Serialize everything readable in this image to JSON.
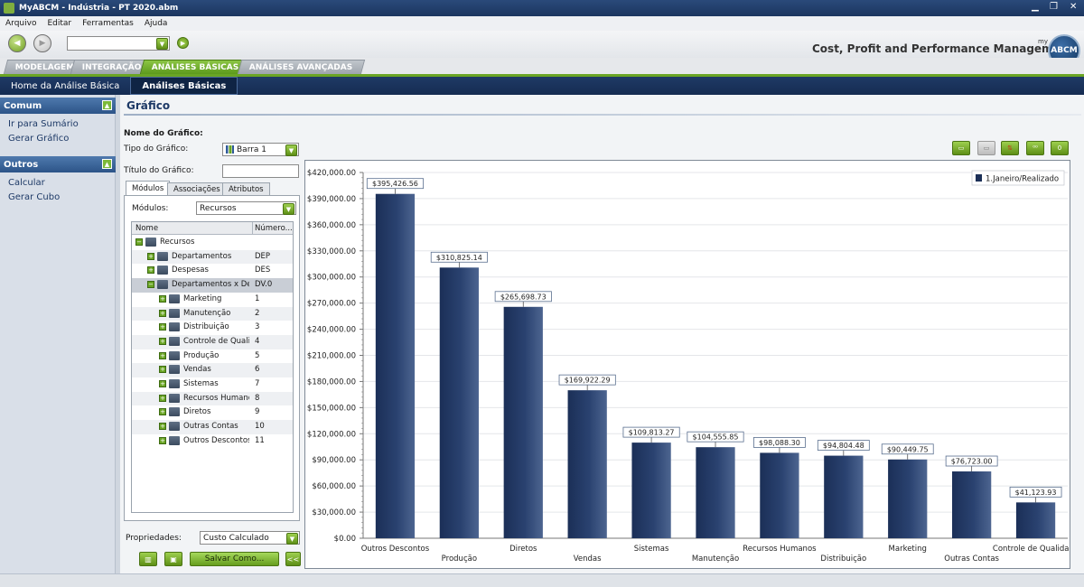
{
  "window": {
    "title": "MyABCM - Indústria - PT 2020.abm"
  },
  "menu": [
    "Arquivo",
    "Editar",
    "Ferramentas",
    "Ajuda"
  ],
  "brand": {
    "tagline": "Cost, Profit and Performance Management",
    "logo_my": "my",
    "logo_text": "ABCM"
  },
  "main_tabs": [
    "MODELAGEM",
    "INTEGRAÇÃO",
    "ANÁLISES BÁSICAS",
    "ANÁLISES AVANÇADAS"
  ],
  "active_main_tab": 2,
  "sub_nav": [
    "Home da Análise Básica",
    "Análises Básicas"
  ],
  "active_sub_nav": 1,
  "sidebar": {
    "comum": {
      "title": "Comum",
      "items": [
        "Ir para Sumário",
        "Gerar Gráfico"
      ]
    },
    "outros": {
      "title": "Outros",
      "items": [
        "Calcular",
        "Gerar Cubo"
      ]
    }
  },
  "page": {
    "title": "Gráfico",
    "chart_name_label": "Nome do Gráfico:",
    "chart_type_label": "Tipo do Gráfico:",
    "chart_type_value": "Barra 1",
    "chart_title_label": "Título do Gráfico:",
    "chart_title_value": "",
    "panel_tabs": [
      "Módulos",
      "Associações",
      "Atributos"
    ],
    "modules_label": "Módulos:",
    "modules_value": "Recursos",
    "tree_headers": [
      "Nome",
      "Número..."
    ],
    "tree": [
      {
        "name": "Recursos",
        "num": "",
        "level": 0,
        "expanded": true
      },
      {
        "name": "Departamentos",
        "num": "DEP",
        "level": 1
      },
      {
        "name": "Despesas",
        "num": "DES",
        "level": 1
      },
      {
        "name": "Departamentos x Descontos",
        "num": "DV.0",
        "level": 1,
        "expanded": true,
        "selected": true
      },
      {
        "name": "Marketing",
        "num": "1",
        "level": 2
      },
      {
        "name": "Manutenção",
        "num": "2",
        "level": 2
      },
      {
        "name": "Distribuição",
        "num": "3",
        "level": 2
      },
      {
        "name": "Controle de Qualidade",
        "num": "4",
        "level": 2
      },
      {
        "name": "Produção",
        "num": "5",
        "level": 2
      },
      {
        "name": "Vendas",
        "num": "6",
        "level": 2
      },
      {
        "name": "Sistemas",
        "num": "7",
        "level": 2
      },
      {
        "name": "Recursos Humanos",
        "num": "8",
        "level": 2
      },
      {
        "name": "Diretos",
        "num": "9",
        "level": 2
      },
      {
        "name": "Outras Contas",
        "num": "10",
        "level": 2
      },
      {
        "name": "Outros Descontos",
        "num": "11",
        "level": 2
      }
    ],
    "properties_label": "Propriedades:",
    "properties_value": "Custo Calculado",
    "save_as_label": "Salvar Como...",
    "collapse_label": "<<"
  },
  "colors": {
    "bar_dark": "#1b2f57",
    "bar_light": "#4d6590",
    "accent_green": "#6aa524",
    "nav_dark": "#1b355f"
  },
  "chart_data": {
    "type": "bar",
    "categories": [
      "Outros Descontos",
      "Produção",
      "Diretos",
      "Vendas",
      "Sistemas",
      "Manutenção",
      "Recursos Humanos",
      "Distribuição",
      "Marketing",
      "Outras Contas",
      "Controle de Qualidade"
    ],
    "series": [
      {
        "name": "1.Janeiro/Realizado",
        "values": [
          395426.56,
          310825.14,
          265698.73,
          169922.29,
          109813.27,
          104555.85,
          98088.3,
          94804.48,
          90449.75,
          76723.0,
          41123.93
        ]
      }
    ],
    "data_labels": [
      "$395,426.56",
      "$310,825.14",
      "$265,698.73",
      "$169,922.29",
      "$109,813.27",
      "$104,555.85",
      "$98,088.30",
      "$94,804.48",
      "$90,449.75",
      "$76,723.00",
      "$41,123.93"
    ],
    "y_ticks": [
      "$0.00",
      "$30,000.00",
      "$60,000.00",
      "$90,000.00",
      "$120,000.00",
      "$150,000.00",
      "$180,000.00",
      "$210,000.00",
      "$240,000.00",
      "$270,000.00",
      "$300,000.00",
      "$330,000.00",
      "$360,000.00",
      "$390,000.00",
      "$420,000.00"
    ],
    "ylim": [
      0,
      420000
    ],
    "grid": true,
    "legend_position": "top-right"
  }
}
